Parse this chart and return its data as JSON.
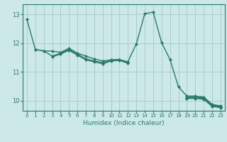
{
  "xlabel": "Humidex (Indice chaleur)",
  "bg_color": "#cce8e8",
  "line_color": "#2a7a6a",
  "grid_color": "#aacece",
  "xlim": [
    -0.5,
    23.5
  ],
  "ylim": [
    9.65,
    13.35
  ],
  "yticks": [
    10,
    11,
    12,
    13
  ],
  "xticks": [
    0,
    1,
    2,
    3,
    4,
    5,
    6,
    7,
    8,
    9,
    10,
    11,
    12,
    13,
    14,
    15,
    16,
    17,
    18,
    19,
    20,
    21,
    22,
    23
  ],
  "lines": [
    [
      12.82,
      11.78,
      11.73,
      11.72,
      11.68,
      11.82,
      11.65,
      11.55,
      11.45,
      11.38,
      11.42,
      11.43,
      11.35,
      11.98,
      13.02,
      13.08,
      12.02,
      11.43,
      10.48,
      10.16,
      10.16,
      10.13,
      9.87,
      9.82
    ],
    [
      null,
      11.78,
      11.73,
      11.55,
      11.65,
      11.78,
      11.62,
      11.45,
      11.38,
      11.32,
      11.4,
      11.42,
      11.33,
      null,
      null,
      null,
      null,
      null,
      null,
      10.12,
      10.12,
      10.1,
      9.85,
      9.8
    ],
    [
      null,
      null,
      null,
      11.52,
      11.62,
      11.75,
      11.58,
      11.42,
      11.35,
      11.28,
      11.38,
      11.4,
      11.3,
      null,
      null,
      null,
      null,
      null,
      null,
      10.1,
      10.1,
      10.08,
      9.83,
      9.78
    ],
    [
      null,
      null,
      null,
      null,
      null,
      null,
      null,
      null,
      null,
      null,
      null,
      null,
      null,
      null,
      null,
      null,
      null,
      null,
      null,
      10.08,
      10.08,
      10.05,
      9.8,
      9.76
    ]
  ]
}
